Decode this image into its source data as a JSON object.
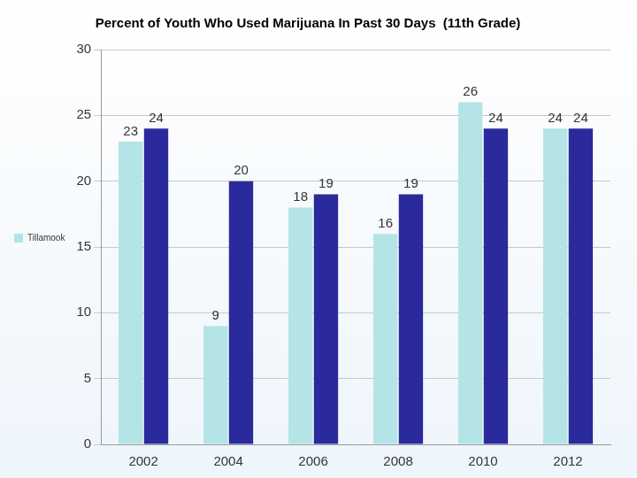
{
  "chart_data": {
    "type": "bar",
    "title": "Percent of Youth Who Used Marijuana In Past 30 Days  (11th Grade)",
    "categories": [
      "2002",
      "2004",
      "2006",
      "2008",
      "2010",
      "2012"
    ],
    "series": [
      {
        "name": "Tillamook",
        "color": "#b4e4e6",
        "values": [
          23,
          9,
          18,
          16,
          26,
          24
        ]
      },
      {
        "color": "#2a2a9c",
        "values": [
          24,
          20,
          19,
          19,
          24,
          24
        ]
      }
    ],
    "ylim": [
      0,
      30
    ],
    "yticks": [
      0,
      5,
      10,
      15,
      20,
      25,
      30
    ],
    "grid": true,
    "data_labels": true,
    "legend": "left"
  }
}
